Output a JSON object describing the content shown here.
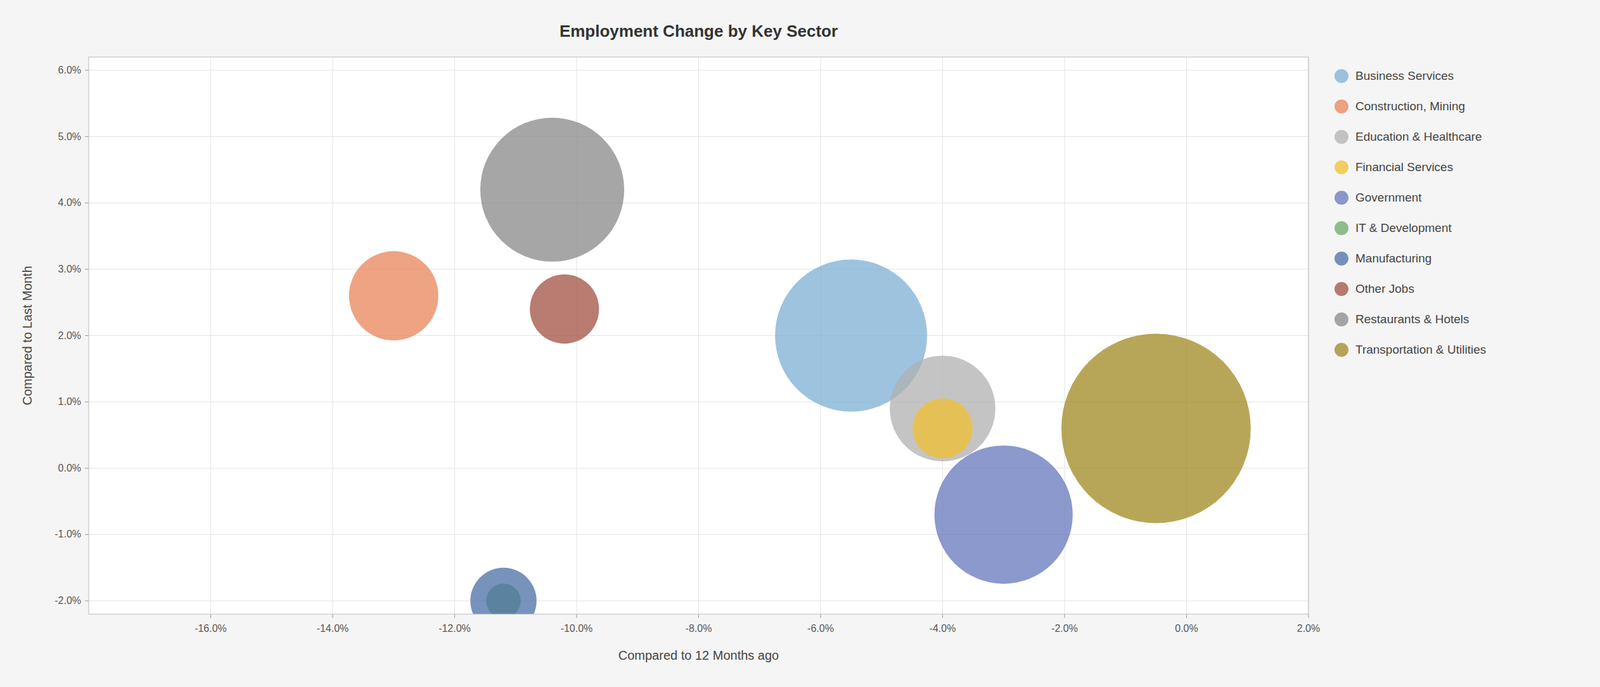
{
  "chart_data": {
    "type": "scatter",
    "title": "Employment Change by Key Sector",
    "x_label": "Compared to 12 Months ago",
    "y_label": "Compared to Last Month",
    "xlim": [
      -0.18,
      0.02
    ],
    "ylim": [
      -0.022,
      0.062
    ],
    "xticks": [
      {
        "value": -0.16,
        "label": "-16.0%"
      },
      {
        "value": -0.14,
        "label": "-14.0%"
      },
      {
        "value": -0.12,
        "label": "-12.0%"
      },
      {
        "value": -0.1,
        "label": "-10.0%"
      },
      {
        "value": -0.08,
        "label": "-8.0%"
      },
      {
        "value": -0.06,
        "label": "-6.0%"
      },
      {
        "value": -0.04,
        "label": "-4.0%"
      },
      {
        "value": -0.02,
        "label": "-2.0%"
      },
      {
        "value": 0.0,
        "label": "0.0%"
      },
      {
        "value": 0.02,
        "label": "2.0%"
      }
    ],
    "yticks": [
      {
        "value": -0.02,
        "label": "-2.0%"
      },
      {
        "value": -0.01,
        "label": "-1.0%"
      },
      {
        "value": 0.0,
        "label": "0.0%"
      },
      {
        "value": 0.01,
        "label": "1.0%"
      },
      {
        "value": 0.02,
        "label": "2.0%"
      },
      {
        "value": 0.03,
        "label": "3.0%"
      },
      {
        "value": 0.04,
        "label": "4.0%"
      },
      {
        "value": 0.05,
        "label": "5.0%"
      },
      {
        "value": 0.06,
        "label": "6.0%"
      }
    ],
    "grid": true,
    "legend": "right",
    "series": [
      {
        "name": "Business Services",
        "color": "#7cafd4",
        "x": [
          -0.055
        ],
        "values": [
          0.02
        ],
        "size": [
          5800
        ]
      },
      {
        "name": "Construction, Mining",
        "color": "#e8845a",
        "x": [
          -0.13
        ],
        "values": [
          0.026
        ],
        "size": [
          2000
        ]
      },
      {
        "name": "Education & Healthcare",
        "color": "#b0b0b0",
        "x": [
          -0.04
        ],
        "values": [
          0.009
        ],
        "size": [
          2800
        ]
      },
      {
        "name": "Financial Services",
        "color": "#f0c030",
        "x": [
          -0.04
        ],
        "values": [
          0.006
        ],
        "size": [
          900
        ]
      },
      {
        "name": "Government",
        "color": "#6677bb",
        "x": [
          -0.03
        ],
        "values": [
          -0.007
        ],
        "size": [
          4800
        ]
      },
      {
        "name": "IT & Development",
        "color": "#6aaa6a",
        "x": [
          -0.112
        ],
        "values": [
          -0.02
        ],
        "size": [
          300
        ]
      },
      {
        "name": "Manufacturing",
        "color": "#4a6fa5",
        "x": [
          -0.112
        ],
        "values": [
          -0.02
        ],
        "size": [
          1100
        ]
      },
      {
        "name": "Other Jobs",
        "color": "#a05040",
        "x": [
          -0.102
        ],
        "values": [
          0.024
        ],
        "size": [
          1200
        ]
      },
      {
        "name": "Restaurants & Hotels",
        "color": "#888888",
        "x": [
          -0.104
        ],
        "values": [
          0.042
        ],
        "size": [
          5200
        ]
      },
      {
        "name": "Transportation & Utilities",
        "color": "#a08820",
        "x": [
          -0.005
        ],
        "values": [
          0.006
        ],
        "size": [
          9000
        ]
      }
    ]
  }
}
